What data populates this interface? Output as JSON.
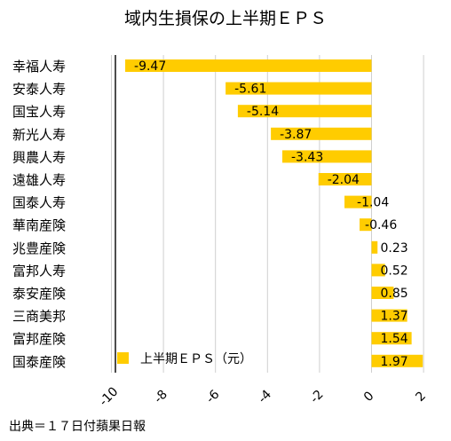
{
  "title": "域内生損保の上半期ＥＰＳ",
  "source": "出典＝１７日付蘋果日報",
  "chart_data": {
    "type": "bar",
    "orientation": "horizontal",
    "categories": [
      "幸福人寿",
      "安泰人寿",
      "国宝人寿",
      "新光人寿",
      "興農人寿",
      "遠雄人寿",
      "国泰人寿",
      "華南産険",
      "兆豊産険",
      "富邦人寿",
      "泰安産険",
      "三商美邦",
      "富邦産険",
      "国泰産険"
    ],
    "series": [
      {
        "name": "上半期ＥＰＳ（元）",
        "color": "#FFCC00",
        "values": [
          -9.47,
          -5.61,
          -5.14,
          -3.87,
          -3.43,
          -2.04,
          -1.04,
          -0.46,
          0.23,
          0.52,
          0.85,
          1.37,
          1.54,
          1.97
        ]
      }
    ],
    "value_labels": [
      "-9.47",
      "-5.61",
      "-5.14",
      "-3.87",
      "-3.43",
      "-2.04",
      "-1.04",
      "-0.46",
      "0.23",
      "0.52",
      "0.85",
      "1.37",
      "1.54",
      "1.97"
    ],
    "xticks": [
      -10,
      -8,
      -6,
      -4,
      -2,
      0,
      2
    ],
    "xtick_labels": [
      "-10",
      "-8",
      "-6",
      "-4",
      "-2",
      "0",
      "2"
    ],
    "xlim": [
      -10,
      2
    ],
    "grid": true,
    "legend_position": "bottom-left"
  }
}
